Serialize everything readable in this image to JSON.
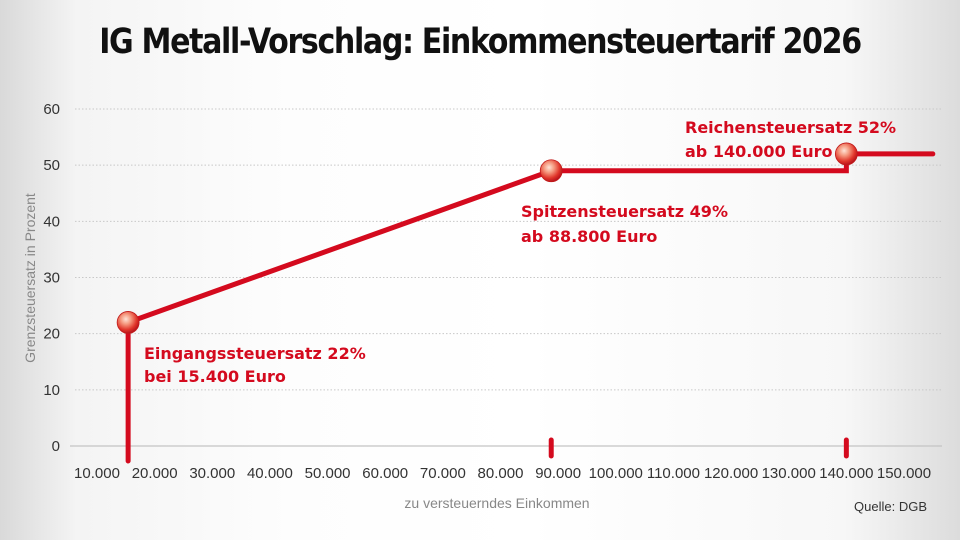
{
  "chart_data": {
    "type": "line",
    "title": "IG Metall-Vorschlag: Einkommensteuertarif 2026",
    "xlabel": "zu versteuerndes Einkommen",
    "ylabel": "Grenzsteuersatz in Prozent",
    "xlim": [
      10000,
      150000
    ],
    "ylim": [
      0,
      60
    ],
    "grid": true,
    "x_tick_values": [
      10000,
      20000,
      30000,
      40000,
      50000,
      60000,
      70000,
      80000,
      90000,
      100000,
      110000,
      120000,
      130000,
      140000,
      150000
    ],
    "x_tick_labels": [
      "10.000",
      "20.000",
      "30.000",
      "40.000",
      "50.000",
      "60.000",
      "70.000",
      "80.000",
      "90.000",
      "100.000",
      "110.000",
      "120.000",
      "130.000",
      "140.000",
      "150.000"
    ],
    "y_tick_values": [
      0,
      10,
      20,
      30,
      40,
      50,
      60
    ],
    "y_tick_labels": [
      "0",
      "10",
      "20",
      "30",
      "40",
      "50",
      "60"
    ],
    "series": [
      {
        "name": "Grenzsteuersatz",
        "color": "#d40a1e",
        "points": [
          {
            "x": 15400,
            "y": 0
          },
          {
            "x": 15400,
            "y": 22
          },
          {
            "x": 88800,
            "y": 49
          },
          {
            "x": 140000,
            "y": 49
          },
          {
            "x": 140000,
            "y": 52
          },
          {
            "x": 155000,
            "y": 52
          }
        ]
      }
    ],
    "markers": [
      {
        "x": 15400,
        "y": 22
      },
      {
        "x": 88800,
        "y": 49
      },
      {
        "x": 140000,
        "y": 52
      }
    ],
    "axis_marks": [
      15400,
      88800,
      140000
    ],
    "annotations": [
      {
        "line1": "Eingangssteuersatz 22%",
        "line2": "bei 15.400 Euro"
      },
      {
        "line1": "Spitzensteuersatz 49%",
        "line2": "ab 88.800 Euro"
      },
      {
        "line1": "Reichensteuersatz 52%",
        "line2": "ab 140.000 Euro"
      }
    ],
    "source": "Quelle: DGB"
  }
}
